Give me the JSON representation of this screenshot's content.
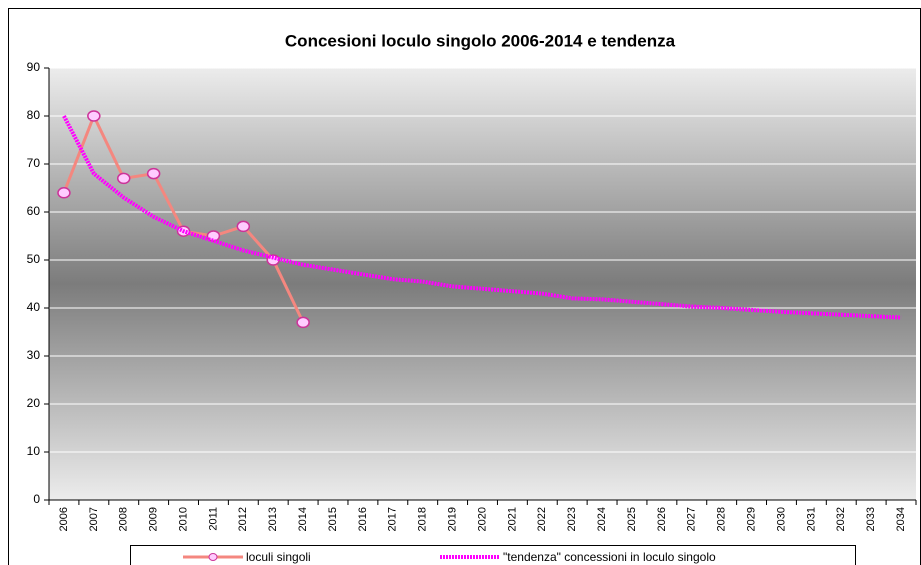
{
  "chart_data": {
    "type": "line",
    "title": "Concesioni loculo singolo 2006-2014 e tendenza",
    "categories": [
      "2006",
      "2007",
      "2008",
      "2009",
      "2010",
      "2011",
      "2012",
      "2013",
      "2014",
      "2015",
      "2016",
      "2017",
      "2018",
      "2019",
      "2020",
      "2021",
      "2022",
      "2023",
      "2024",
      "2025",
      "2026",
      "2027",
      "2028",
      "2029",
      "2030",
      "2031",
      "2032",
      "2033",
      "2034"
    ],
    "series": [
      {
        "name": "loculi singoli",
        "color": "#f4877f",
        "values": [
          64,
          80,
          67,
          68,
          56,
          55,
          57,
          50,
          37,
          null,
          null,
          null,
          null,
          null,
          null,
          null,
          null,
          null,
          null,
          null,
          null,
          null,
          null,
          null,
          null,
          null,
          null,
          null,
          null
        ]
      },
      {
        "name": "\"tendenza\" concessioni in loculo singolo",
        "color": "#ff00ff",
        "values": [
          80,
          68,
          63,
          59,
          56,
          54,
          52,
          50.5,
          49,
          48,
          47,
          46,
          45.5,
          44.5,
          44,
          43.5,
          43,
          42,
          41.8,
          41.3,
          40.8,
          40.3,
          40,
          39.6,
          39.2,
          38.9,
          38.6,
          38.3,
          38
        ]
      }
    ],
    "ylim": [
      0,
      90
    ],
    "yticks": [
      0,
      10,
      20,
      30,
      40,
      50,
      60,
      70,
      80,
      90
    ],
    "grid": true
  }
}
